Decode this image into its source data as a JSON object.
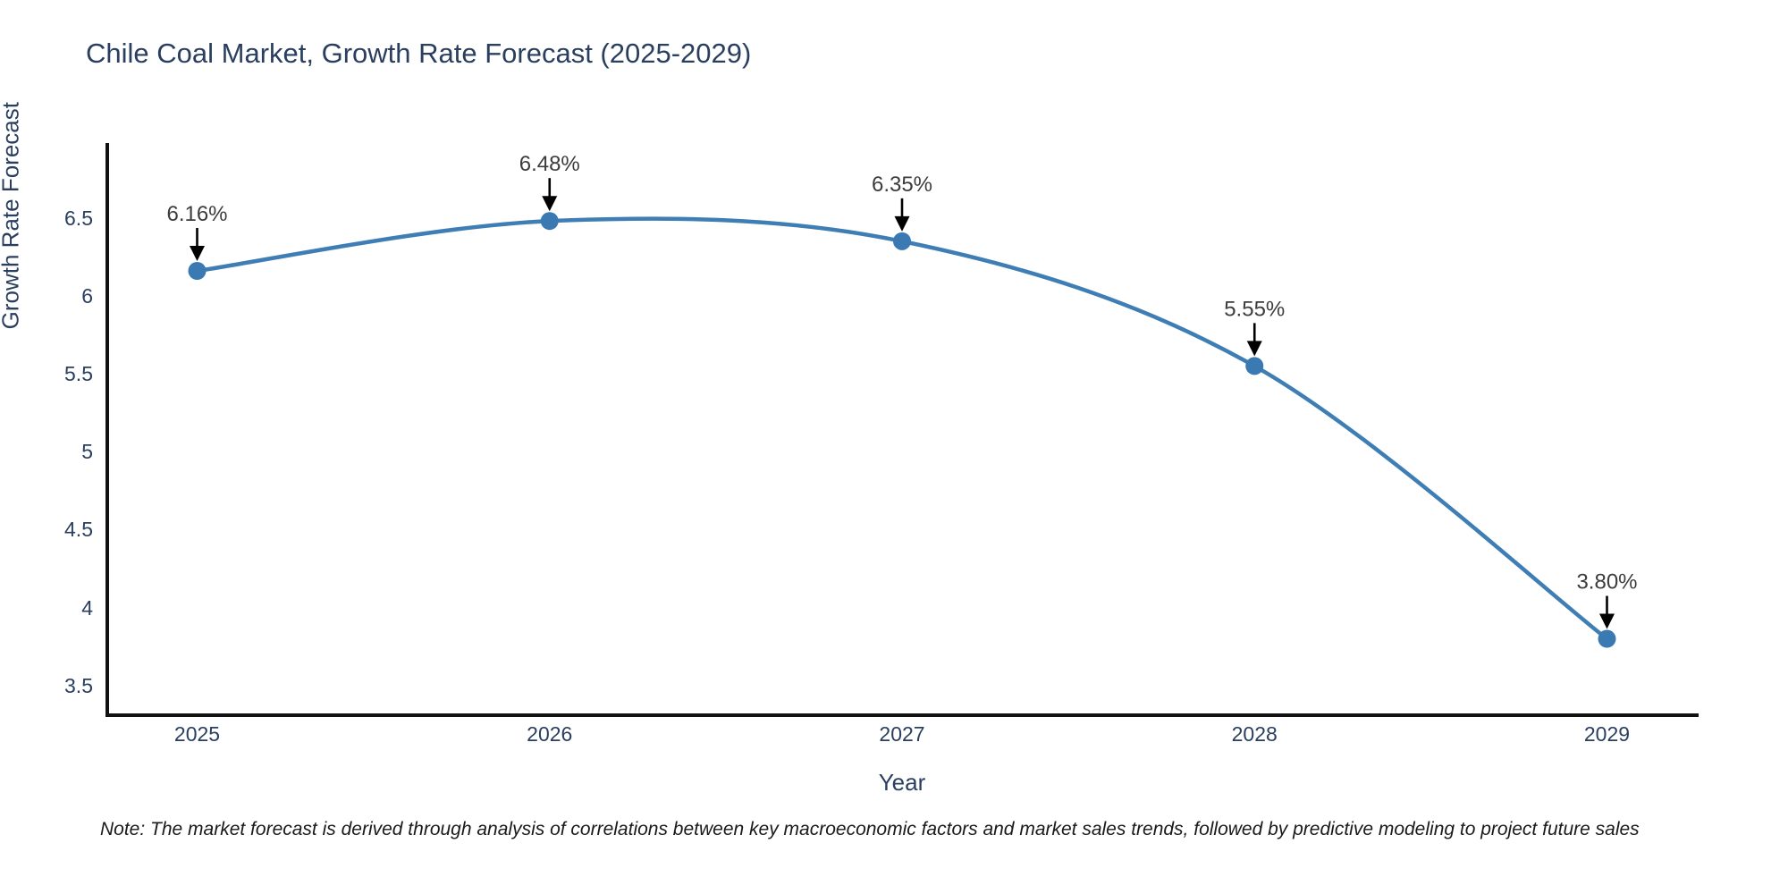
{
  "note": "Note: The market forecast is derived through analysis of correlations between key macroeconomic factors and market sales trends, followed by predictive modeling to project future sales",
  "chart_data": {
    "type": "line",
    "title": "Chile Coal Market, Growth Rate Forecast (2025-2029)",
    "xlabel": "Year",
    "ylabel": "Growth Rate Forecast",
    "x": [
      2025,
      2026,
      2027,
      2028,
      2029
    ],
    "values": [
      6.16,
      6.48,
      6.35,
      5.55,
      3.8
    ],
    "point_labels": [
      "6.16%",
      "6.48%",
      "6.35%",
      "5.55%",
      "3.80%"
    ],
    "x_tick_labels": [
      "2025",
      "2026",
      "2027",
      "2028",
      "2029"
    ],
    "y_tick_values": [
      6.5,
      6.0,
      5.5,
      5.0,
      4.5,
      4.0,
      3.5
    ],
    "y_tick_labels": [
      "6.5",
      "6",
      "5.5",
      "5",
      "4.5",
      "4",
      "3.5"
    ],
    "xlim": [
      2024.74,
      2029.26
    ],
    "ylim": [
      3.31,
      6.98
    ],
    "grid": false,
    "legend_position": "none",
    "line_style": "spline",
    "annotation_style": "down-arrow",
    "colors": {
      "line": "#3f7eb5",
      "marker": "#3a79b2",
      "axis": "#111111",
      "axis_text": "#2a3f5f",
      "annotation_text": "#3c3c3c",
      "arrow": "#000000"
    }
  }
}
